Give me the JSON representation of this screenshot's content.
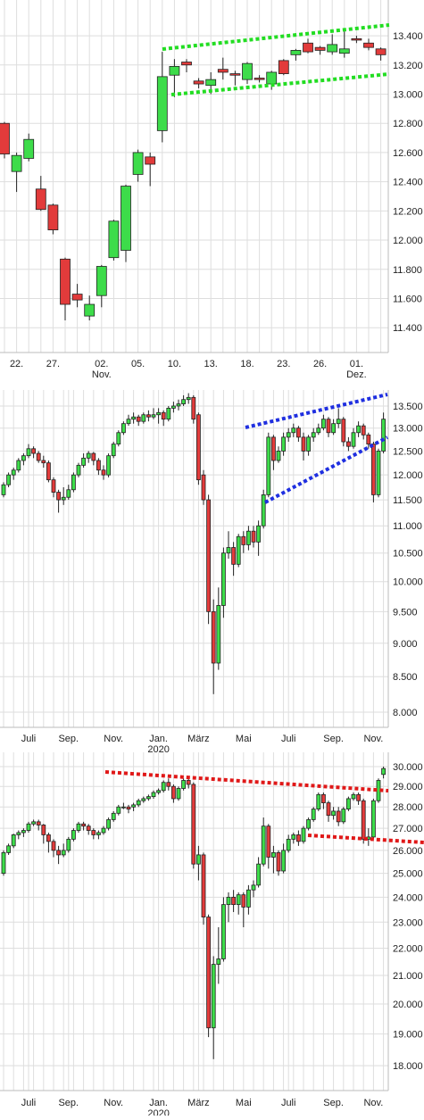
{
  "chart_data": [
    {
      "type": "candlestick",
      "up_color": "#3ddc4a",
      "down_color": "#e23b3b",
      "log_scale": false,
      "grid": true,
      "categories": [
        null,
        "22.",
        null,
        null,
        "27.",
        null,
        null,
        null,
        "02.\nNov.",
        null,
        null,
        "05.",
        null,
        null,
        "10.",
        null,
        null,
        "13.",
        null,
        null,
        "18.",
        null,
        null,
        "23.",
        null,
        null,
        "26.",
        null,
        null,
        "01.\nDez.",
        null,
        null
      ],
      "open": [
        12800,
        12470,
        12560,
        12350,
        12240,
        11870,
        11630,
        11480,
        11620,
        11880,
        11930,
        12450,
        12570,
        12750,
        13130,
        13220,
        13090,
        13060,
        13170,
        13140,
        13100,
        13110,
        13070,
        13230,
        13270,
        13350,
        13320,
        13290,
        13280,
        13380,
        13350,
        13310
      ],
      "high": [
        12810,
        12600,
        12730,
        12440,
        12250,
        11880,
        11700,
        11620,
        11830,
        12140,
        12380,
        12620,
        12600,
        13290,
        13240,
        13240,
        13110,
        13150,
        13250,
        13160,
        13220,
        13130,
        13160,
        13240,
        13310,
        13380,
        13330,
        13410,
        13450,
        13400,
        13380,
        13320
      ],
      "low": [
        12560,
        12330,
        12540,
        12200,
        12040,
        11450,
        11540,
        11450,
        11540,
        11860,
        11850,
        12400,
        12370,
        12670,
        12980,
        13150,
        13040,
        13000,
        13100,
        13060,
        13070,
        13080,
        13030,
        13130,
        13230,
        13280,
        13270,
        13270,
        13250,
        13350,
        13300,
        13230
      ],
      "close": [
        12590,
        12580,
        12690,
        12210,
        12070,
        11560,
        11590,
        11560,
        11820,
        12130,
        12370,
        12600,
        12520,
        13120,
        13190,
        13200,
        13070,
        13100,
        13150,
        13130,
        13210,
        13100,
        13150,
        13140,
        13300,
        13290,
        13300,
        13340,
        13310,
        13370,
        13320,
        13270
      ],
      "ylim": [
        11230,
        13645
      ],
      "yticks": [
        {
          "value": 11400,
          "label": "11.400"
        },
        {
          "value": 11600,
          "label": "11.600"
        },
        {
          "value": 11800,
          "label": "11.800"
        },
        {
          "value": 12000,
          "label": "12.000"
        },
        {
          "value": 12200,
          "label": "12.200"
        },
        {
          "value": 12400,
          "label": "12.400"
        },
        {
          "value": 12600,
          "label": "12.600"
        },
        {
          "value": 12800,
          "label": "12.800"
        },
        {
          "value": 13000,
          "label": "13.000"
        },
        {
          "value": 13200,
          "label": "13.200"
        },
        {
          "value": 13400,
          "label": "13.400"
        }
      ]
    },
    {
      "type": "candlestick",
      "up_color": "#3ddc4a",
      "down_color": "#e23b3b",
      "log_scale": true,
      "grid": true,
      "categories": [
        null,
        null,
        null,
        null,
        null,
        "Juli",
        null,
        null,
        null,
        null,
        null,
        null,
        null,
        "Sep.",
        null,
        null,
        null,
        null,
        null,
        null,
        null,
        null,
        "Nov.",
        null,
        null,
        null,
        null,
        null,
        null,
        null,
        null,
        "Jan.\n2020",
        null,
        null,
        null,
        null,
        null,
        null,
        null,
        "März",
        null,
        null,
        null,
        null,
        null,
        null,
        null,
        null,
        "Mai",
        null,
        null,
        null,
        null,
        null,
        null,
        null,
        null,
        "Juli",
        null,
        null,
        null,
        null,
        null,
        null,
        null,
        null,
        "Sep.",
        null,
        null,
        null,
        null,
        null,
        null,
        null,
        "Nov.",
        null,
        null
      ],
      "open": [
        11600,
        11800,
        12000,
        12100,
        12300,
        12400,
        12550,
        12450,
        12300,
        12250,
        11900,
        11650,
        11500,
        11550,
        11700,
        12000,
        12200,
        12350,
        12450,
        12300,
        12100,
        12000,
        12400,
        12650,
        12900,
        13100,
        13200,
        13250,
        13150,
        13300,
        13250,
        13300,
        13350,
        13200,
        13450,
        13500,
        13550,
        13650,
        13700,
        13300,
        12000,
        11500,
        9500,
        8700,
        9600,
        10500,
        10600,
        10300,
        10800,
        10650,
        10900,
        10700,
        11000,
        11600,
        12800,
        12300,
        12500,
        12800,
        12900,
        13000,
        12800,
        12500,
        12800,
        12900,
        13000,
        13200,
        12900,
        13100,
        13200,
        12700,
        12600,
        12900,
        13050,
        12850,
        12650,
        11600,
        12500
      ],
      "high": [
        11850,
        12050,
        12150,
        12350,
        12450,
        12650,
        12600,
        12500,
        12400,
        12300,
        11950,
        11700,
        11750,
        11800,
        12050,
        12250,
        12450,
        12500,
        12480,
        12350,
        12200,
        12450,
        12700,
        12950,
        13150,
        13300,
        13350,
        13300,
        13350,
        13400,
        13450,
        13450,
        13400,
        13500,
        13600,
        13650,
        13750,
        13800,
        13750,
        13350,
        12100,
        11600,
        9700,
        9900,
        10600,
        10900,
        10700,
        10850,
        10900,
        11000,
        11000,
        11100,
        11700,
        12900,
        12850,
        12600,
        12900,
        13000,
        13100,
        13050,
        12900,
        12850,
        13000,
        13100,
        13300,
        13250,
        13200,
        13450,
        13250,
        12800,
        13000,
        13150,
        13100,
        12900,
        12700,
        12550,
        13350
      ],
      "low": [
        11550,
        11750,
        11900,
        12050,
        12200,
        12350,
        12350,
        12250,
        12150,
        11850,
        11550,
        11250,
        11400,
        11500,
        11650,
        11950,
        12150,
        12250,
        12200,
        12000,
        11900,
        11950,
        12350,
        12600,
        12850,
        13050,
        13100,
        13050,
        13100,
        13150,
        13200,
        13100,
        13050,
        13150,
        13350,
        13400,
        13500,
        13550,
        13100,
        11800,
        11400,
        9300,
        8250,
        8600,
        9400,
        10400,
        10100,
        10250,
        10500,
        10550,
        10600,
        10450,
        10950,
        11550,
        12100,
        12250,
        12400,
        12700,
        12800,
        12700,
        12300,
        12400,
        12700,
        12850,
        12950,
        12800,
        12850,
        13000,
        12600,
        12500,
        12550,
        12800,
        12750,
        12550,
        11450,
        11550,
        12450
      ],
      "close": [
        11800,
        12000,
        12100,
        12300,
        12400,
        12550,
        12450,
        12300,
        12250,
        11900,
        11650,
        11500,
        11550,
        11700,
        12000,
        12200,
        12350,
        12450,
        12300,
        12100,
        12000,
        12400,
        12650,
        12900,
        13100,
        13200,
        13250,
        13150,
        13300,
        13250,
        13300,
        13350,
        13200,
        13450,
        13500,
        13550,
        13650,
        13700,
        13200,
        11900,
        11500,
        9500,
        8700,
        9600,
        10500,
        10600,
        10300,
        10800,
        10650,
        10900,
        10700,
        11000,
        11600,
        12800,
        12300,
        12500,
        12800,
        12900,
        13000,
        12800,
        12500,
        12800,
        12900,
        13000,
        13200,
        12900,
        13100,
        13200,
        12700,
        12600,
        12900,
        13050,
        12850,
        12650,
        11600,
        12500,
        13200
      ],
      "ylim": [
        7795,
        13875
      ],
      "yticks": [
        {
          "value": 8000,
          "label": "8.000"
        },
        {
          "value": 8500,
          "label": "8.500"
        },
        {
          "value": 9000,
          "label": "9.000"
        },
        {
          "value": 9500,
          "label": "9.500"
        },
        {
          "value": 10000,
          "label": "10.000"
        },
        {
          "value": 10500,
          "label": "10.500"
        },
        {
          "value": 11000,
          "label": "11.000"
        },
        {
          "value": 11500,
          "label": "11.500"
        },
        {
          "value": 12000,
          "label": "12.000"
        },
        {
          "value": 12500,
          "label": "12.500"
        },
        {
          "value": 13000,
          "label": "13.000"
        },
        {
          "value": 13500,
          "label": "13.500"
        }
      ]
    },
    {
      "type": "candlestick",
      "up_color": "#3ddc4a",
      "down_color": "#e23b3b",
      "log_scale": true,
      "grid": true,
      "categories": [
        null,
        null,
        null,
        null,
        null,
        "Juli",
        null,
        null,
        null,
        null,
        null,
        null,
        null,
        "Sep.",
        null,
        null,
        null,
        null,
        null,
        null,
        null,
        null,
        "Nov.",
        null,
        null,
        null,
        null,
        null,
        null,
        null,
        null,
        "Jan.\n2020",
        null,
        null,
        null,
        null,
        null,
        null,
        null,
        "März",
        null,
        null,
        null,
        null,
        null,
        null,
        null,
        null,
        "Mai",
        null,
        null,
        null,
        null,
        null,
        null,
        null,
        null,
        "Juli",
        null,
        null,
        null,
        null,
        null,
        null,
        null,
        null,
        "Sep.",
        null,
        null,
        null,
        null,
        null,
        null,
        null,
        "Nov.",
        null,
        null
      ],
      "open": [
        25000,
        25900,
        26200,
        26700,
        26800,
        26900,
        27200,
        27300,
        27150,
        26700,
        26400,
        26000,
        25800,
        26000,
        26500,
        26900,
        27200,
        27100,
        26900,
        26700,
        26800,
        27000,
        27400,
        27700,
        28000,
        28000,
        28000,
        28100,
        28300,
        28400,
        28500,
        28700,
        28800,
        29200,
        29000,
        28400,
        28900,
        29300,
        29100,
        25400,
        25800,
        23200,
        19200,
        21400,
        21600,
        23700,
        24000,
        23700,
        24100,
        23600,
        24300,
        24500,
        25400,
        27100,
        25700,
        25900,
        25100,
        26000,
        26500,
        26700,
        26400,
        27000,
        27400,
        27900,
        28600,
        28200,
        27600,
        27800,
        27300,
        27900,
        28400,
        28600,
        28300,
        26500,
        26600,
        28300,
        29600
      ],
      "high": [
        26000,
        26300,
        26750,
        26900,
        27000,
        27300,
        27400,
        27400,
        27200,
        26800,
        26500,
        26200,
        26300,
        26600,
        27000,
        27300,
        27300,
        27200,
        27000,
        26900,
        27100,
        27500,
        27800,
        28100,
        28200,
        28100,
        28200,
        28400,
        28500,
        28600,
        28800,
        28900,
        29300,
        29400,
        29100,
        29000,
        29400,
        29500,
        29200,
        26200,
        25900,
        23300,
        21700,
        22800,
        24000,
        24200,
        24300,
        24200,
        24200,
        24500,
        24700,
        25700,
        27500,
        27200,
        26200,
        26000,
        26300,
        26700,
        26800,
        26900,
        27100,
        27500,
        28000,
        28700,
        28700,
        28300,
        28000,
        28000,
        28000,
        28500,
        28700,
        28700,
        28400,
        27000,
        28400,
        29400,
        30000
      ],
      "low": [
        24900,
        25800,
        26100,
        26500,
        26600,
        26800,
        27100,
        26900,
        26300,
        25900,
        25700,
        25400,
        25700,
        25900,
        26400,
        26800,
        26900,
        26700,
        26500,
        26500,
        26700,
        26900,
        27300,
        27600,
        27900,
        27700,
        27800,
        28000,
        28200,
        28300,
        28400,
        28600,
        28700,
        28800,
        28200,
        28300,
        28800,
        28900,
        25200,
        24700,
        22900,
        18900,
        18200,
        20700,
        21500,
        23000,
        23400,
        23300,
        22800,
        23300,
        24000,
        24400,
        25300,
        25200,
        25000,
        24900,
        25000,
        25900,
        26300,
        26200,
        26300,
        26900,
        27300,
        27800,
        27900,
        27300,
        27400,
        27100,
        27200,
        27800,
        28300,
        28100,
        26300,
        26200,
        26500,
        28200,
        29400
      ],
      "close": [
        25900,
        26200,
        26700,
        26800,
        26900,
        27200,
        27300,
        27150,
        26700,
        26400,
        26000,
        25800,
        26000,
        26500,
        26900,
        27200,
        27100,
        26900,
        26700,
        26800,
        27000,
        27400,
        27700,
        28000,
        28000,
        27900,
        28100,
        28300,
        28400,
        28500,
        28700,
        28800,
        29200,
        29000,
        28400,
        28900,
        29300,
        29100,
        25400,
        25800,
        23200,
        19200,
        21400,
        21600,
        23700,
        24000,
        23700,
        24100,
        23600,
        24300,
        24500,
        25400,
        27100,
        25700,
        25900,
        25100,
        26000,
        26500,
        26700,
        26400,
        27000,
        27400,
        27900,
        28600,
        28200,
        27600,
        27800,
        27300,
        27900,
        28400,
        28600,
        28300,
        26500,
        26600,
        28300,
        29300,
        29900
      ],
      "ylim": [
        17250,
        30740
      ],
      "yticks": [
        {
          "value": 18000,
          "label": "18.000"
        },
        {
          "value": 19000,
          "label": "19.000"
        },
        {
          "value": 20000,
          "label": "20.000"
        },
        {
          "value": 21000,
          "label": "21.000"
        },
        {
          "value": 22000,
          "label": "22.000"
        },
        {
          "value": 23000,
          "label": "23.000"
        },
        {
          "value": 24000,
          "label": "24.000"
        },
        {
          "value": 25000,
          "label": "25.000"
        },
        {
          "value": 26000,
          "label": "26.000"
        },
        {
          "value": 27000,
          "label": "27.000"
        },
        {
          "value": 28000,
          "label": "28.000"
        },
        {
          "value": 29000,
          "label": "29.000"
        },
        {
          "value": 30000,
          "label": "30.000"
        }
      ]
    }
  ]
}
